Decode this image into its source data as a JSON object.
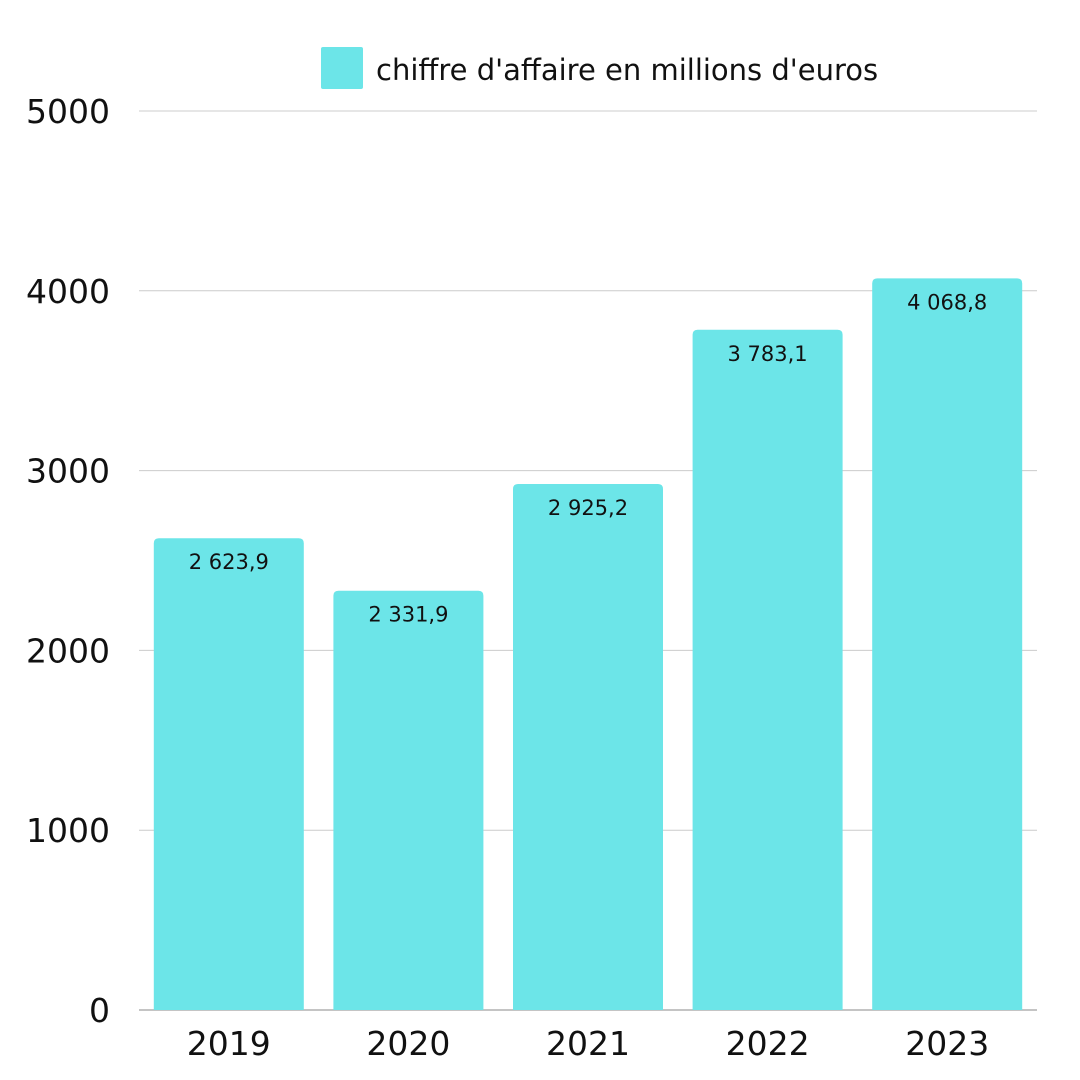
{
  "chart_data": {
    "type": "bar",
    "categories": [
      "2019",
      "2020",
      "2021",
      "2022",
      "2023"
    ],
    "series": [
      {
        "name": "chiffre d'affaire en millions d'euros",
        "values": [
          2623.9,
          2331.9,
          2925.2,
          3783.1,
          4068.8
        ],
        "labels": [
          "2 623,9",
          "2 331,9",
          "2 925,2",
          "3 783,1",
          "4 068,8"
        ],
        "color": "#6ce5e8"
      }
    ],
    "title": "",
    "xlabel": "",
    "ylabel": "",
    "ylim": [
      0,
      5000
    ],
    "yticks": [
      0,
      1000,
      2000,
      3000,
      4000,
      5000
    ],
    "ytick_labels": [
      "0",
      "1000",
      "2000",
      "3000",
      "4000",
      "5000"
    ],
    "grid": true,
    "legend_position": "top"
  }
}
